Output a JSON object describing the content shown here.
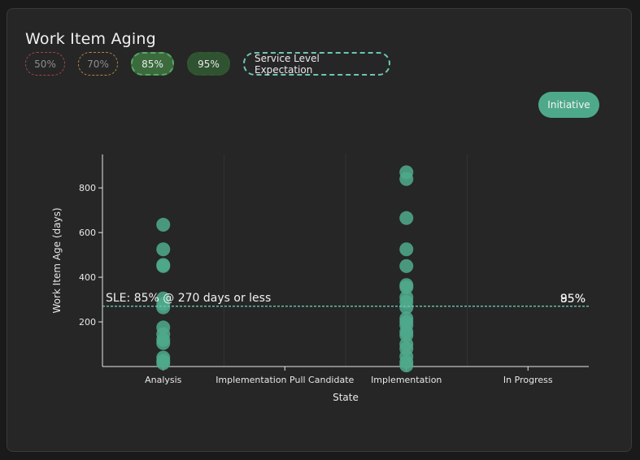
{
  "title": "Work Item Aging",
  "percentile_toggles": [
    {
      "label": "50%",
      "color": "#a04848"
    },
    {
      "label": "70%",
      "color": "#b08740"
    },
    {
      "label": "85%",
      "color": "#59a865"
    },
    {
      "label": "95%",
      "color": "#325832"
    }
  ],
  "sle_toggle": {
    "label": "Service Level Expectation",
    "color": "#6cc7b4"
  },
  "filter_button": {
    "label": "Initiative",
    "color": "#4ea98b"
  },
  "chart_data": {
    "type": "scatter",
    "xlabel": "State",
    "ylabel": "Work Item Age (days)",
    "categories": [
      "Analysis",
      "Implementation Pull Candidate",
      "Implementation",
      "In Progress"
    ],
    "ylim": [
      0,
      950
    ],
    "yticks": [
      200,
      400,
      600,
      800
    ],
    "point_color": "#4ea98b",
    "points": [
      {
        "state": "Analysis",
        "age": 635
      },
      {
        "state": "Analysis",
        "age": 525
      },
      {
        "state": "Analysis",
        "age": 455
      },
      {
        "state": "Analysis",
        "age": 450
      },
      {
        "state": "Analysis",
        "age": 305
      },
      {
        "state": "Analysis",
        "age": 280
      },
      {
        "state": "Analysis",
        "age": 265
      },
      {
        "state": "Analysis",
        "age": 175
      },
      {
        "state": "Analysis",
        "age": 145
      },
      {
        "state": "Analysis",
        "age": 120
      },
      {
        "state": "Analysis",
        "age": 105
      },
      {
        "state": "Analysis",
        "age": 40
      },
      {
        "state": "Analysis",
        "age": 25
      },
      {
        "state": "Analysis",
        "age": 15
      },
      {
        "state": "Implementation",
        "age": 870
      },
      {
        "state": "Implementation",
        "age": 840
      },
      {
        "state": "Implementation",
        "age": 665
      },
      {
        "state": "Implementation",
        "age": 525
      },
      {
        "state": "Implementation",
        "age": 450
      },
      {
        "state": "Implementation",
        "age": 365
      },
      {
        "state": "Implementation",
        "age": 355
      },
      {
        "state": "Implementation",
        "age": 310
      },
      {
        "state": "Implementation",
        "age": 290
      },
      {
        "state": "Implementation",
        "age": 265
      },
      {
        "state": "Implementation",
        "age": 215
      },
      {
        "state": "Implementation",
        "age": 200
      },
      {
        "state": "Implementation",
        "age": 185
      },
      {
        "state": "Implementation",
        "age": 155
      },
      {
        "state": "Implementation",
        "age": 140
      },
      {
        "state": "Implementation",
        "age": 100
      },
      {
        "state": "Implementation",
        "age": 80
      },
      {
        "state": "Implementation",
        "age": 45
      },
      {
        "state": "Implementation",
        "age": 20
      },
      {
        "state": "Implementation",
        "age": 5
      }
    ],
    "sle": {
      "value": 270,
      "label": "SLE: 85% @ 270 days or less",
      "percentile_label": "85%",
      "color": "#6cc7b4"
    },
    "percentile_lines": [
      {
        "label": "95%",
        "value": 270
      }
    ],
    "grid": "vertical"
  }
}
